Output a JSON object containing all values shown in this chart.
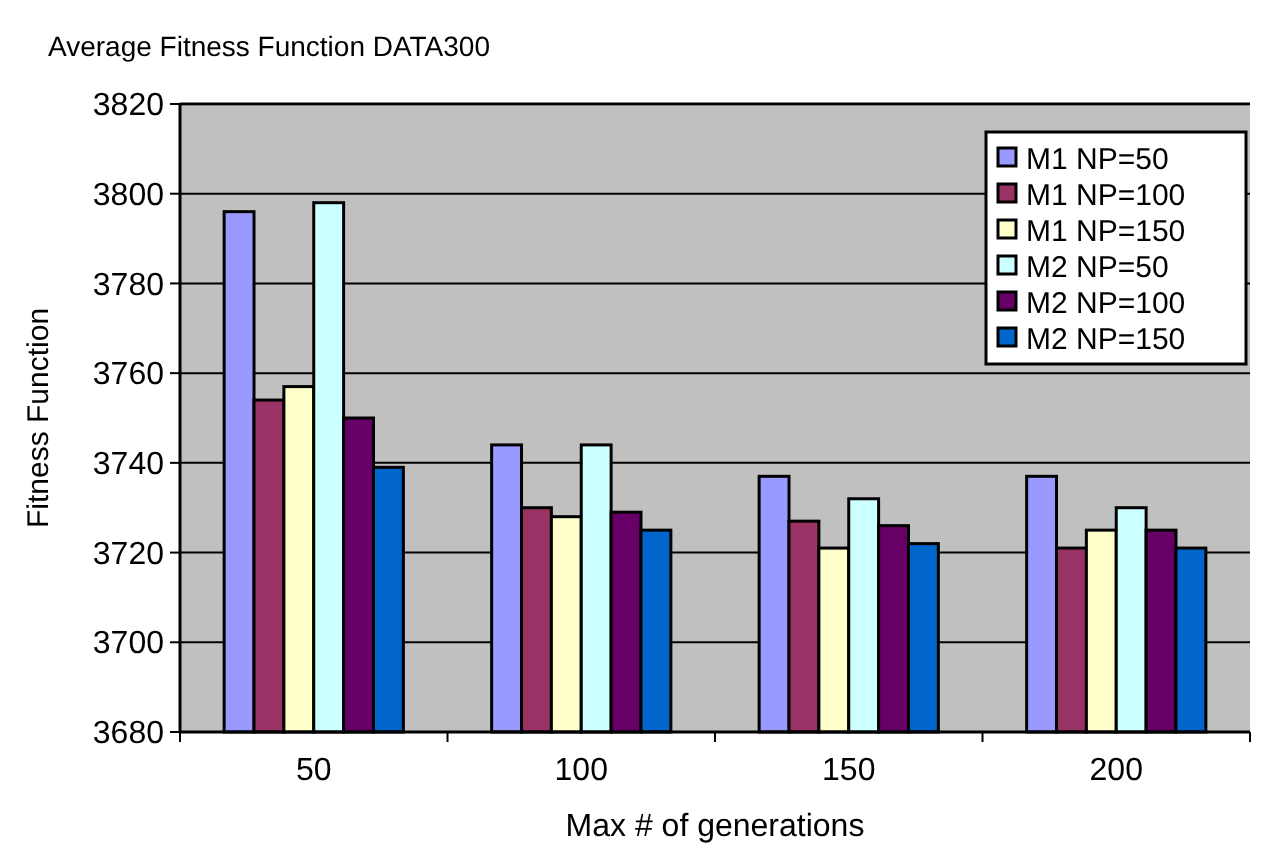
{
  "chart_data": {
    "type": "bar",
    "title": "Average Fitness Function DATA300",
    "xlabel": "Max # of generations",
    "ylabel": "Fitness Function",
    "categories": [
      "50",
      "100",
      "150",
      "200"
    ],
    "series": [
      {
        "name": "M1 NP=50",
        "color": "#9999ff",
        "values": [
          3796,
          3744,
          3737,
          3737
        ]
      },
      {
        "name": "M1 NP=100",
        "color": "#993366",
        "values": [
          3754,
          3730,
          3727,
          3721
        ]
      },
      {
        "name": "M1 NP=150",
        "color": "#ffffcc",
        "values": [
          3757,
          3728,
          3721,
          3725
        ]
      },
      {
        "name": "M2 NP=50",
        "color": "#ccffff",
        "values": [
          3798,
          3744,
          3732,
          3730
        ]
      },
      {
        "name": "M2 NP=100",
        "color": "#660066",
        "values": [
          3750,
          3729,
          3726,
          3725
        ]
      },
      {
        "name": "M2 NP=150",
        "color": "#0066cc",
        "values": [
          3739,
          3725,
          3722,
          3721
        ]
      }
    ],
    "ylim": [
      3680,
      3820
    ],
    "yticks": [
      3680,
      3700,
      3720,
      3740,
      3760,
      3780,
      3800,
      3820
    ],
    "grid": "y",
    "legend": "top right"
  }
}
